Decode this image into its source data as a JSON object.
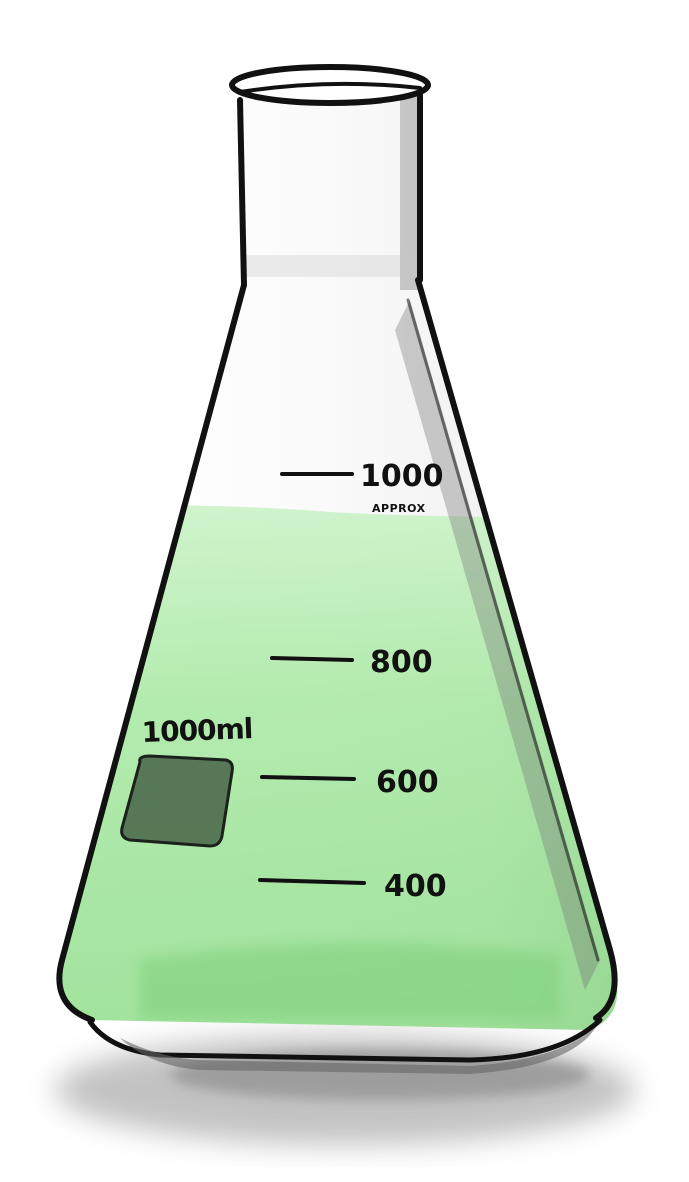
{
  "illustration": {
    "subject": "erlenmeyer-flask",
    "liquid_color": "#9ee59a",
    "label_patch_color": "#4f6f4f",
    "outline_color": "#111111",
    "shadow_color": "#bdbdbd"
  },
  "capacity_label": "1000ml",
  "graduations": [
    {
      "value": "1000",
      "note": "APPROX"
    },
    {
      "value": "800"
    },
    {
      "value": "600"
    },
    {
      "value": "400"
    }
  ]
}
